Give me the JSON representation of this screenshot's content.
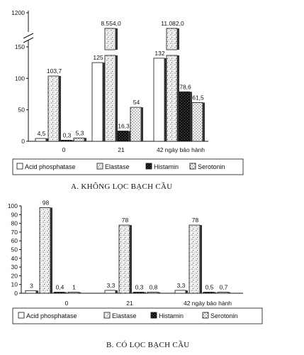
{
  "chart_data": [
    {
      "type": "bar",
      "title": "A. KHÔNG LỌC BẠCH CẦU",
      "categories": [
        "0",
        "21",
        "42 ngày bảo hành"
      ],
      "yticks": [
        "0",
        "50",
        "100",
        "150",
        "1200"
      ],
      "ylim": [
        0,
        150
      ],
      "axis_break": true,
      "series": [
        {
          "name": "Acid phosphatase",
          "values": [
            4.5,
            125,
            132
          ],
          "labels": [
            "4,5",
            "125",
            "132"
          ],
          "pattern": "white"
        },
        {
          "name": "Elastase",
          "values": [
            103.7,
            1200,
            1200
          ],
          "labels": [
            "103,7",
            "8.554,0",
            "11.082,0"
          ],
          "pattern": "stipple"
        },
        {
          "name": "Histamin",
          "values": [
            0.3,
            16.3,
            78.6
          ],
          "labels": [
            "0,3",
            "16,3",
            "78,6"
          ],
          "pattern": "dark"
        },
        {
          "name": "Serotonin",
          "values": [
            5.3,
            54,
            61.5
          ],
          "labels": [
            "5,3",
            "54",
            "61,5"
          ],
          "pattern": "dots"
        }
      ],
      "legend": [
        "Acid phosphatase",
        "Elastase",
        "Histamin",
        "Serotonin"
      ]
    },
    {
      "type": "bar",
      "title": "B. CÓ LỌC BẠCH CẦU",
      "categories": [
        "0",
        "21",
        "42 ngày bảo hành"
      ],
      "yticks": [
        "0",
        "10",
        "20",
        "30",
        "40",
        "50",
        "60",
        "70",
        "80",
        "90",
        "100"
      ],
      "ylim": [
        0,
        100
      ],
      "series": [
        {
          "name": "Acid phosphatase",
          "values": [
            3,
            3.3,
            3.3
          ],
          "labels": [
            "3",
            "3,3",
            "3,3"
          ],
          "pattern": "white"
        },
        {
          "name": "Elastase",
          "values": [
            98,
            78,
            78
          ],
          "labels": [
            "98",
            "78",
            "78"
          ],
          "pattern": "stipple"
        },
        {
          "name": "Histamin",
          "values": [
            0.4,
            0.3,
            0.5
          ],
          "labels": [
            "0,4",
            "0,3",
            "0,5"
          ],
          "pattern": "dark"
        },
        {
          "name": "Serotonin",
          "values": [
            1,
            0.8,
            0.7
          ],
          "labels": [
            "1",
            "0,8",
            "0,7"
          ],
          "pattern": "dots"
        }
      ],
      "legend": [
        "Acid phosphatase",
        "Elastase",
        "Histamin",
        "Serotonin"
      ]
    }
  ]
}
